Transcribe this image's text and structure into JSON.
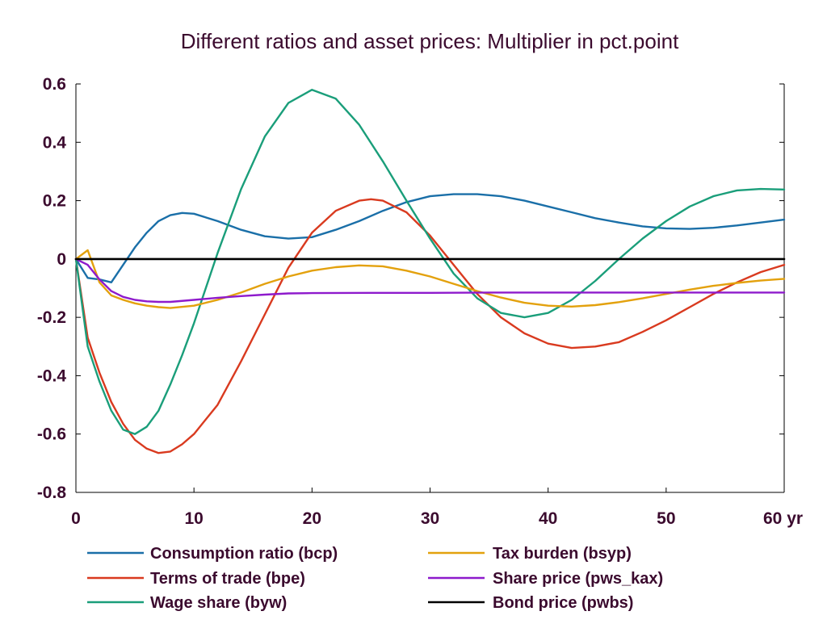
{
  "chart_data": {
    "type": "line",
    "title": "Different ratios and asset prices: Multiplier in pct.point",
    "xlabel": "",
    "ylabel": "",
    "xlim": [
      0,
      60
    ],
    "ylim": [
      -0.8,
      0.6
    ],
    "x_ticks": [
      0,
      10,
      20,
      30,
      40,
      50,
      60
    ],
    "x_tick_labels": [
      "0",
      "10",
      "20",
      "30",
      "40",
      "50",
      "60 yr"
    ],
    "y_ticks": [
      -0.8,
      -0.6,
      -0.4,
      -0.2,
      0,
      0.2,
      0.4,
      0.6
    ],
    "y_tick_labels": [
      "-0.8",
      "-0.6",
      "-0.4",
      "-0.2",
      "0",
      "0.2",
      "0.4",
      "0.6"
    ],
    "grid": false,
    "legend_position": "bottom",
    "series": [
      {
        "name": "Consumption ratio (bcp)",
        "color": "#1a6fa8",
        "x": [
          0,
          1,
          2,
          3,
          4,
          5,
          6,
          7,
          8,
          9,
          10,
          12,
          14,
          16,
          18,
          20,
          22,
          24,
          26,
          28,
          30,
          32,
          34,
          36,
          38,
          40,
          42,
          44,
          46,
          48,
          50,
          52,
          54,
          56,
          58,
          60
        ],
        "values": [
          0,
          -0.065,
          -0.07,
          -0.08,
          -0.02,
          0.04,
          0.09,
          0.13,
          0.15,
          0.158,
          0.155,
          0.13,
          0.1,
          0.078,
          0.07,
          0.075,
          0.1,
          0.13,
          0.165,
          0.195,
          0.215,
          0.222,
          0.222,
          0.215,
          0.2,
          0.18,
          0.16,
          0.14,
          0.125,
          0.112,
          0.105,
          0.103,
          0.107,
          0.115,
          0.125,
          0.135
        ]
      },
      {
        "name": "Terms of trade (bpe)",
        "color": "#d93a1f",
        "x": [
          0,
          1,
          2,
          3,
          4,
          5,
          6,
          7,
          8,
          9,
          10,
          12,
          14,
          16,
          18,
          20,
          22,
          24,
          25,
          26,
          28,
          30,
          32,
          34,
          36,
          38,
          40,
          42,
          44,
          46,
          48,
          50,
          52,
          54,
          56,
          58,
          60
        ],
        "values": [
          0,
          -0.27,
          -0.39,
          -0.49,
          -0.565,
          -0.62,
          -0.65,
          -0.665,
          -0.66,
          -0.635,
          -0.6,
          -0.5,
          -0.35,
          -0.19,
          -0.03,
          0.09,
          0.165,
          0.2,
          0.205,
          0.2,
          0.16,
          0.08,
          -0.02,
          -0.12,
          -0.2,
          -0.255,
          -0.29,
          -0.305,
          -0.3,
          -0.285,
          -0.25,
          -0.21,
          -0.165,
          -0.12,
          -0.08,
          -0.045,
          -0.02
        ]
      },
      {
        "name": "Wage share (byw)",
        "color": "#1a9e7a",
        "x": [
          0,
          1,
          2,
          3,
          4,
          5,
          6,
          7,
          8,
          9,
          10,
          12,
          14,
          16,
          18,
          20,
          22,
          24,
          26,
          28,
          30,
          32,
          34,
          36,
          38,
          40,
          42,
          44,
          46,
          48,
          50,
          52,
          54,
          56,
          58,
          60
        ],
        "values": [
          0,
          -0.3,
          -0.42,
          -0.52,
          -0.585,
          -0.6,
          -0.575,
          -0.52,
          -0.43,
          -0.33,
          -0.22,
          0.02,
          0.24,
          0.42,
          0.535,
          0.58,
          0.55,
          0.46,
          0.335,
          0.2,
          0.07,
          -0.05,
          -0.135,
          -0.185,
          -0.2,
          -0.185,
          -0.14,
          -0.075,
          0.0,
          0.07,
          0.13,
          0.18,
          0.215,
          0.235,
          0.24,
          0.238
        ]
      },
      {
        "name": "Tax burden (bsyp)",
        "color": "#e3a10d",
        "x": [
          0,
          1,
          2,
          3,
          4,
          5,
          6,
          7,
          8,
          10,
          12,
          14,
          16,
          18,
          20,
          22,
          24,
          26,
          28,
          30,
          32,
          34,
          36,
          38,
          40,
          42,
          44,
          46,
          48,
          50,
          52,
          54,
          56,
          58,
          60
        ],
        "values": [
          0,
          0.03,
          -0.08,
          -0.125,
          -0.14,
          -0.152,
          -0.16,
          -0.165,
          -0.168,
          -0.16,
          -0.14,
          -0.115,
          -0.085,
          -0.06,
          -0.04,
          -0.028,
          -0.022,
          -0.025,
          -0.04,
          -0.06,
          -0.085,
          -0.11,
          -0.132,
          -0.15,
          -0.16,
          -0.163,
          -0.158,
          -0.148,
          -0.135,
          -0.12,
          -0.105,
          -0.092,
          -0.082,
          -0.074,
          -0.068
        ]
      },
      {
        "name": "Share price (pws_kax)",
        "color": "#8e1acc",
        "x": [
          0,
          1,
          2,
          3,
          4,
          5,
          6,
          7,
          8,
          10,
          12,
          14,
          16,
          18,
          20,
          25,
          30,
          35,
          40,
          45,
          50,
          55,
          60
        ],
        "values": [
          0,
          -0.02,
          -0.07,
          -0.11,
          -0.13,
          -0.14,
          -0.145,
          -0.147,
          -0.147,
          -0.14,
          -0.133,
          -0.127,
          -0.122,
          -0.118,
          -0.117,
          -0.116,
          -0.116,
          -0.115,
          -0.115,
          -0.115,
          -0.115,
          -0.115,
          -0.115
        ]
      },
      {
        "name": "Bond price (pwbs)",
        "color": "#000000",
        "x": [
          0,
          60
        ],
        "values": [
          0,
          0
        ]
      }
    ]
  }
}
